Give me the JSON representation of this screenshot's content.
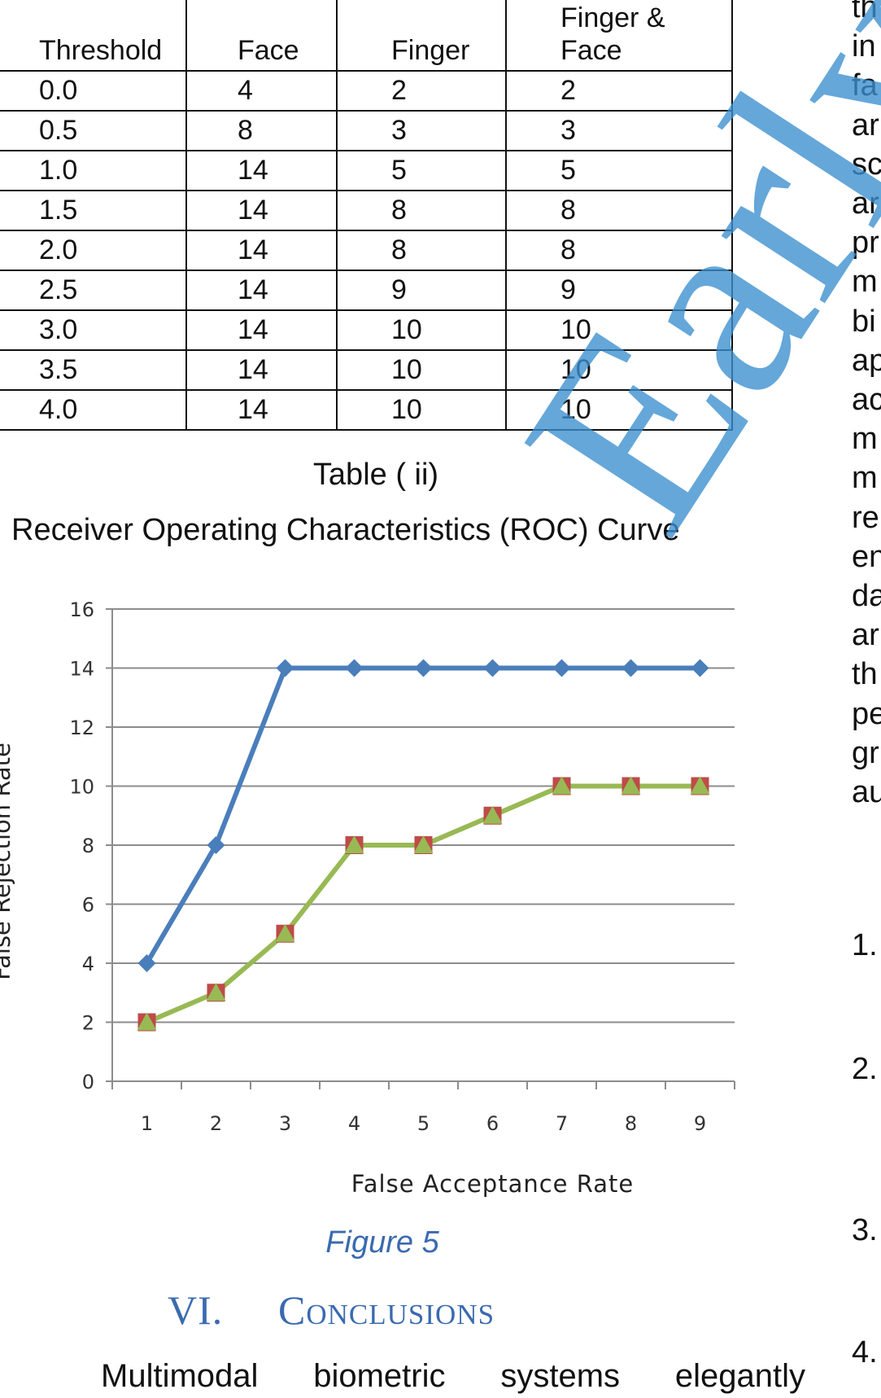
{
  "table": {
    "headers": [
      "Threshold",
      "Face",
      "Finger",
      "Finger & Face"
    ],
    "rows": [
      [
        "0.0",
        "4",
        "2",
        "2"
      ],
      [
        "0.5",
        "8",
        "3",
        "3"
      ],
      [
        "1.0",
        "14",
        "5",
        "5"
      ],
      [
        "1.5",
        "14",
        "8",
        "8"
      ],
      [
        "2.0",
        "14",
        "8",
        "8"
      ],
      [
        "2.5",
        "14",
        "9",
        "9"
      ],
      [
        "3.0",
        "14",
        "10",
        "10"
      ],
      [
        "3.5",
        "14",
        "10",
        "10"
      ],
      [
        "4.0",
        "14",
        "10",
        "10"
      ]
    ],
    "caption": "Table ( ii)"
  },
  "chart_title": "Receiver Operating Characteristics (ROC) Curve",
  "chart_data": {
    "type": "line",
    "xlabel": "False Acceptance Rate",
    "ylabel": "False Rejection Rate",
    "categories": [
      "1",
      "2",
      "3",
      "4",
      "5",
      "6",
      "7",
      "8",
      "9"
    ],
    "ylim": [
      0,
      16
    ],
    "yticks": [
      "0",
      "2",
      "4",
      "6",
      "8",
      "10",
      "12",
      "14",
      "16"
    ],
    "grid": true,
    "series": [
      {
        "color": "#4a7ebb",
        "marker": "diamond",
        "values": [
          4,
          8,
          14,
          14,
          14,
          14,
          14,
          14,
          14
        ]
      },
      {
        "color": "#be4b48",
        "marker": "square",
        "values": [
          2,
          3,
          5,
          8,
          8,
          9,
          10,
          10,
          10
        ]
      },
      {
        "color": "#98b954",
        "marker": "triangle",
        "values": [
          2,
          3,
          5,
          8,
          8,
          9,
          10,
          10,
          10
        ]
      }
    ]
  },
  "figure_caption": "Figure 5",
  "section": {
    "number": "VI.",
    "title": "Conclusions",
    "first_line_words": [
      "Multimodal",
      "biometric",
      "systems",
      "elegantly"
    ]
  },
  "right_column": {
    "fragments": [
      "th",
      "in",
      "fa",
      "ar",
      "sc",
      "ar",
      "pr",
      "m",
      "bi",
      "ap",
      "ac",
      "m",
      "m",
      "re",
      "en",
      "da",
      "ar",
      "th",
      "pe",
      "gr",
      "au"
    ],
    "list_numbers": [
      "1.",
      "2.",
      "3.",
      "4."
    ]
  },
  "watermark": "Early V",
  "colors": {
    "heading": "#3a6ab0",
    "watermark": "#3b8fcf"
  }
}
